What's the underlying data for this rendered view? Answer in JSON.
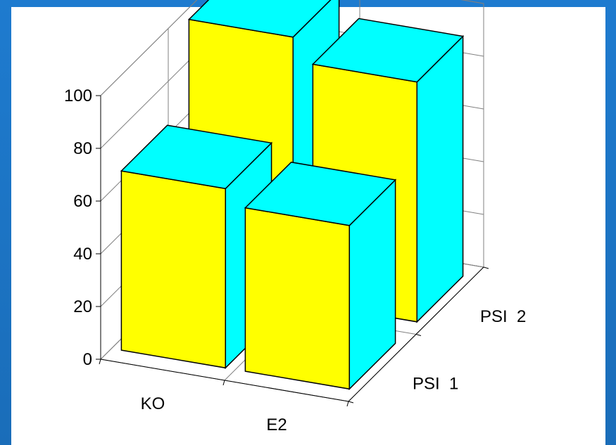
{
  "chart_data": {
    "type": "bar",
    "categories": [
      "KO",
      "E2"
    ],
    "series": [
      {
        "name": "PSI  1",
        "values": [
          68,
          62
        ]
      },
      {
        "name": "PSI  2",
        "values": [
          100,
          91
        ]
      }
    ],
    "title": "",
    "xlabel": "",
    "ylabel": "",
    "ylim": [
      0,
      100
    ],
    "yticks": [
      "0",
      "20",
      "40",
      "60",
      "80",
      "100"
    ],
    "grid": true,
    "legend": "none",
    "colors": {
      "front_face": "#ffff00",
      "side_face": "#00ffff",
      "top_face": "#00ffff",
      "edge": "#000000"
    }
  }
}
